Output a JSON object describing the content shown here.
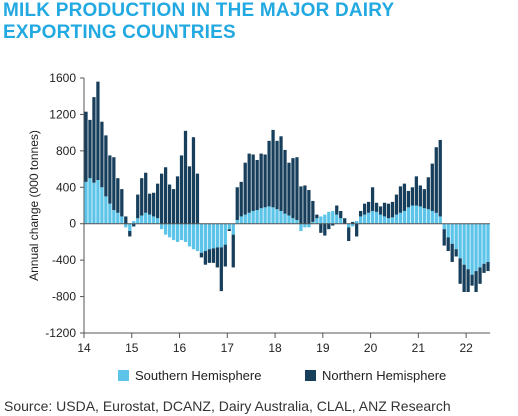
{
  "title_lines": [
    "MILK PRODUCTION IN THE MAJOR DAIRY",
    "EXPORTING COUNTRIES"
  ],
  "source": "Source: USDA, Eurostat, DCANZ, Dairy Australia, CLAL, ANZ Research",
  "colors": {
    "southern": "#5bc4e8",
    "northern": "#173f5c",
    "title": "#22a9e1"
  },
  "chart_data": {
    "type": "bar",
    "stacked": true,
    "title": "MILK PRODUCTION IN THE MAJOR DAIRY EXPORTING COUNTRIES",
    "xlabel": "",
    "ylabel": "Annual change (000 tonnes)",
    "ylim": [
      -1200,
      1600
    ],
    "yticks": [
      1600,
      1200,
      800,
      400,
      0,
      -400,
      -800,
      -1200
    ],
    "xtick_labels": [
      "14",
      "15",
      "16",
      "17",
      "18",
      "19",
      "20",
      "21",
      "22"
    ],
    "x_start": "2014-01",
    "x_end": "2022-06",
    "legend": "bottom",
    "grid": false,
    "series": [
      {
        "name": "Southern Hemisphere",
        "values": [
          460,
          500,
          450,
          480,
          400,
          300,
          220,
          150,
          120,
          80,
          -40,
          -80,
          30,
          60,
          90,
          120,
          100,
          80,
          60,
          -60,
          -120,
          -150,
          -180,
          -200,
          -180,
          -200,
          -250,
          -280,
          -300,
          -320,
          -300,
          -280,
          -270,
          -260,
          -260,
          -230,
          -60,
          -120,
          40,
          80,
          100,
          120,
          140,
          150,
          170,
          180,
          190,
          180,
          160,
          140,
          110,
          90,
          60,
          40,
          -80,
          -40,
          -40,
          20,
          60,
          80,
          100,
          130,
          140,
          100,
          60,
          0,
          -40,
          -30,
          30,
          80,
          100,
          120,
          140,
          130,
          100,
          80,
          60,
          70,
          100,
          120,
          140,
          180,
          200,
          200,
          190,
          170,
          160,
          140,
          120,
          80,
          -60,
          -150,
          -220,
          -280,
          -380,
          -450,
          -500,
          -560,
          -520,
          -480,
          -440,
          -420,
          -400,
          -350
        ],
        "northern_note": ""
      },
      {
        "name": "Northern Hemisphere",
        "values": [
          770,
          640,
          940,
          1080,
          720,
          670,
          530,
          580,
          380,
          300,
          80,
          -60,
          -30,
          260,
          410,
          440,
          230,
          260,
          380,
          550,
          620,
          430,
          380,
          520,
          750,
          1020,
          630,
          950,
          550,
          -50,
          -150,
          -150,
          -160,
          -220,
          -480,
          -240,
          -20,
          -360,
          360,
          380,
          570,
          650,
          620,
          550,
          600,
          580,
          720,
          850,
          750,
          820,
          700,
          580,
          660,
          690,
          410,
          420,
          370,
          230,
          40,
          -100,
          -130,
          -60,
          -20,
          100,
          80,
          60,
          -150,
          20,
          -140,
          60,
          120,
          120,
          260,
          100,
          90,
          150,
          160,
          170,
          220,
          290,
          300,
          180,
          200,
          320,
          230,
          210,
          350,
          520,
          720,
          840,
          -180,
          -150,
          -200,
          -80,
          -280,
          -300,
          -250,
          -120,
          -230,
          -180,
          -100,
          -100,
          -160,
          -120
        ]
      }
    ]
  }
}
